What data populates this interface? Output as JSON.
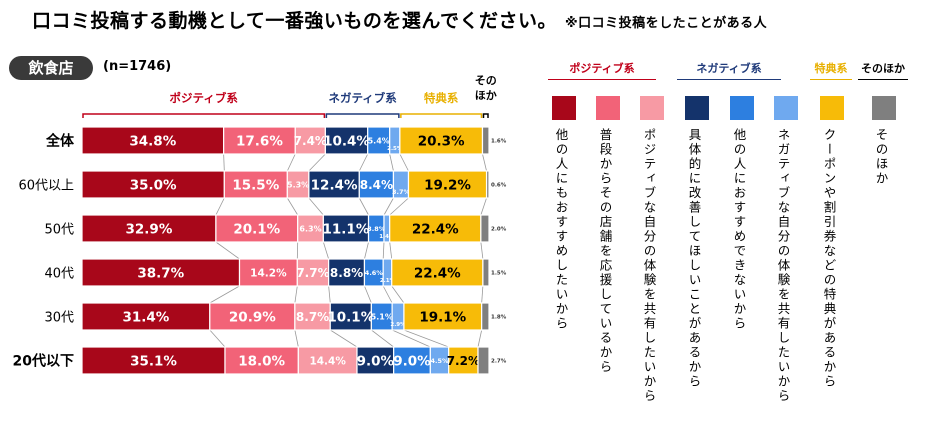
{
  "title": "口コミ投稿する動機として一番強いものを選んでください。",
  "title_note": "※口コミ投稿をしたことがある人",
  "segment_label": "飲食店",
  "sample_size": "(n=1746)",
  "colors": {
    "pos1": "#a8071a",
    "pos2": "#f26378",
    "pos3": "#f79aa4",
    "neg1": "#14336b",
    "neg2": "#2d7fe0",
    "neg3": "#6fa9ef",
    "perk": "#f7bb08",
    "other": "#7f7f7f",
    "pos_group": "#c0001a",
    "neg_group": "#1f3a7a",
    "perk_group": "#e8b000",
    "other_group": "#000000"
  },
  "groups": [
    {
      "key": "positive",
      "label": "ポジティブ系"
    },
    {
      "key": "negative",
      "label": "ネガティブ系"
    },
    {
      "key": "perk",
      "label": "特典系"
    },
    {
      "key": "other",
      "label": "その\nほか"
    }
  ],
  "legend": {
    "groups": [
      {
        "label": "ポジティブ系"
      },
      {
        "label": "ネガティブ系"
      },
      {
        "label": "特典系"
      },
      {
        "label": "そのほか"
      }
    ],
    "items": [
      {
        "label": "他の人にもおすすめしたいから",
        "color_key": "pos1"
      },
      {
        "label": "普段からその店舗を応援しているから",
        "color_key": "pos2"
      },
      {
        "label": "ポジティブな自分の体験を共有したいから",
        "color_key": "pos3"
      },
      {
        "label": "具体的に改善してほしいことがあるから",
        "color_key": "neg1"
      },
      {
        "label": "他の人におすすめできないから",
        "color_key": "neg2"
      },
      {
        "label": "ネガティブな自分の体験を共有したいから",
        "color_key": "neg3"
      },
      {
        "label": "クーポンや割引券などの特典があるから",
        "color_key": "perk"
      },
      {
        "label": "そのほか",
        "color_key": "other"
      }
    ]
  },
  "chart_data": {
    "type": "bar",
    "orientation": "horizontal-stacked-100",
    "title": "口コミ投稿する動機として一番強いものを選んでください。",
    "unit": "%",
    "categories": [
      "全体",
      "60代以上",
      "50代",
      "40代",
      "30代",
      "20代以下"
    ],
    "bold_categories": [
      "全体",
      "20代以下"
    ],
    "series": [
      {
        "name": "他の人にもおすすめしたいから",
        "color_key": "pos1",
        "values": [
          34.8,
          35.0,
          32.9,
          38.7,
          31.4,
          35.1
        ]
      },
      {
        "name": "普段からその店舗を応援しているから",
        "color_key": "pos2",
        "values": [
          17.6,
          15.5,
          20.1,
          14.2,
          20.9,
          18.0
        ]
      },
      {
        "name": "ポジティブな自分の体験を共有したいから",
        "color_key": "pos3",
        "values": [
          7.4,
          5.3,
          6.3,
          7.7,
          8.7,
          14.4
        ]
      },
      {
        "name": "具体的に改善してほしいことがあるから",
        "color_key": "neg1",
        "values": [
          10.4,
          12.4,
          11.1,
          8.8,
          10.1,
          9.0
        ]
      },
      {
        "name": "他の人におすすめできないから",
        "color_key": "neg2",
        "values": [
          5.4,
          8.4,
          3.8,
          4.6,
          5.1,
          9.0
        ]
      },
      {
        "name": "ネガティブな自分の体験を共有したいから",
        "color_key": "neg3",
        "values": [
          2.5,
          3.7,
          1.4,
          2.1,
          2.9,
          4.5
        ]
      },
      {
        "name": "クーポンや割引券などの特典があるから",
        "color_key": "perk",
        "values": [
          20.3,
          19.2,
          22.4,
          22.4,
          19.1,
          7.2
        ]
      },
      {
        "name": "そのほか",
        "color_key": "other",
        "values": [
          1.6,
          0.6,
          2.0,
          1.5,
          1.8,
          2.7
        ]
      }
    ]
  }
}
